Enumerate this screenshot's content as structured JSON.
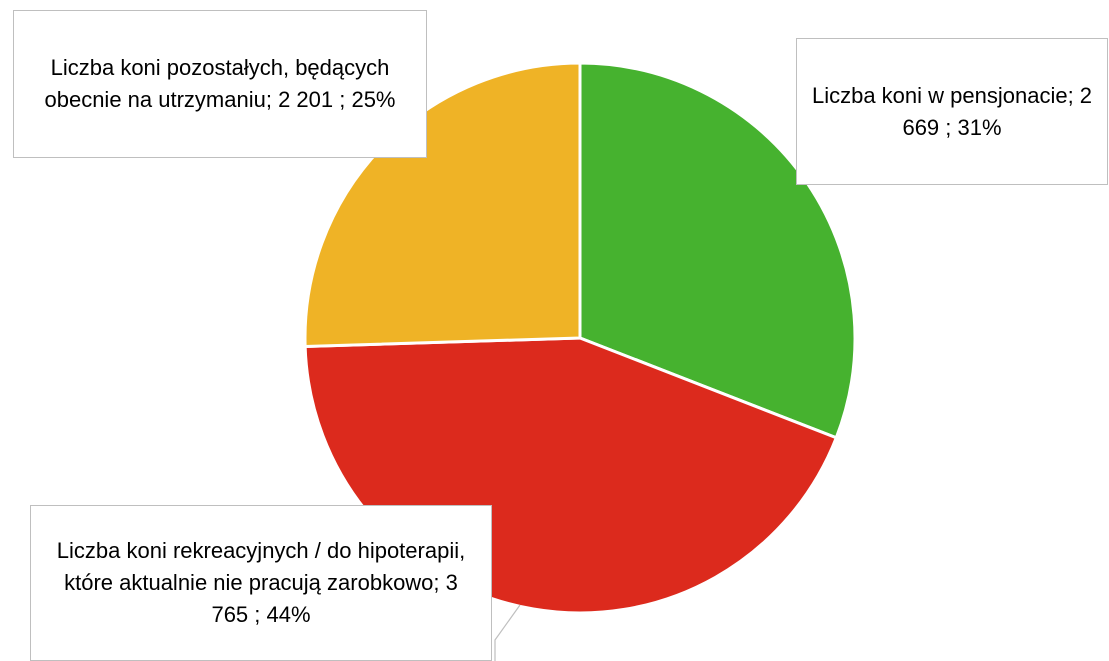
{
  "chart_data": {
    "type": "pie",
    "values": [
      2669,
      3765,
      2201
    ],
    "value_labels": [
      "Liczba koni w pensjonacie; 2 669 ; 31%",
      "Liczba koni rekreacyjnych / do hipoterapii, które aktualnie nie pracują zarobkowo; 3 765 ; 44%",
      "Liczba koni pozostałych, będących obecnie na utrzymaniu; 2 201 ; 25%"
    ],
    "colors": [
      "#46b22f",
      "#dc2a1d",
      "#efb326"
    ]
  }
}
